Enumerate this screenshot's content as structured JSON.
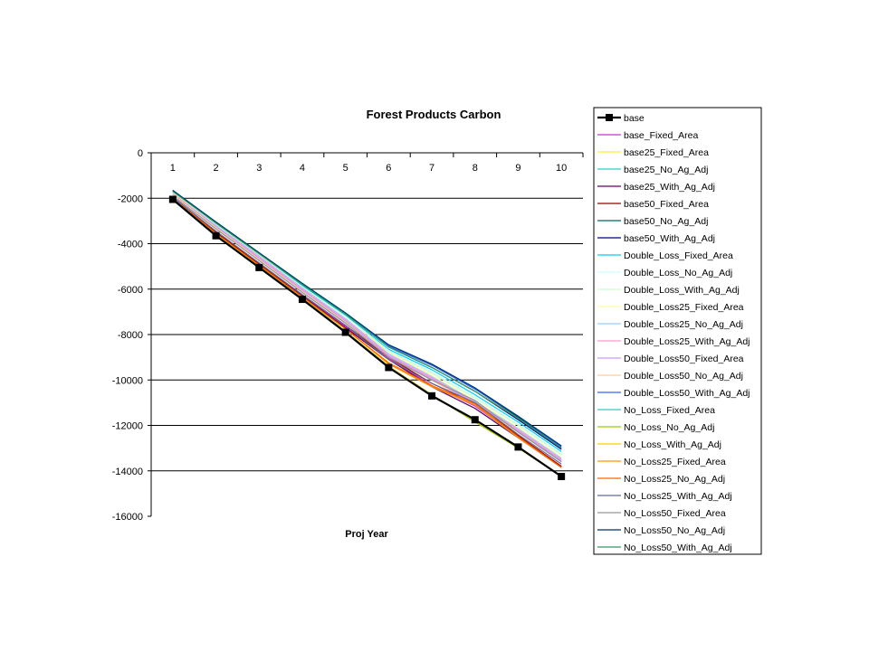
{
  "chart_data": {
    "type": "line",
    "title": "Forest Products Carbon",
    "xlabel": "Proj Year",
    "ylabel": "",
    "categories": [
      "1",
      "2",
      "3",
      "4",
      "5",
      "6",
      "7",
      "8",
      "9",
      "10"
    ],
    "ylim": [
      -16000,
      0
    ],
    "yticks": [
      0,
      -2000,
      -4000,
      -6000,
      -8000,
      -10000,
      -12000,
      -14000,
      -16000
    ],
    "grid": "horizontal",
    "legend_position": "right",
    "series": [
      {
        "name": "base",
        "color": "#000000",
        "marker": "square",
        "values": [
          -2050,
          -3650,
          -5050,
          -6450,
          -7900,
          -9450,
          -10700,
          -11750,
          -12950,
          -14250
        ]
      },
      {
        "name": "base_Fixed_Area",
        "color": "#cc33cc",
        "values": [
          -2000,
          -3550,
          -4900,
          -6250,
          -7650,
          -9050,
          -10250,
          -11150,
          -12500,
          -13800
        ]
      },
      {
        "name": "base25_Fixed_Area",
        "color": "#ffee33",
        "values": [
          -2050,
          -3600,
          -5000,
          -6400,
          -7850,
          -9400,
          -10650,
          -11800,
          -12950,
          -14250
        ]
      },
      {
        "name": "base25_No_Ag_Adj",
        "color": "#33cccc",
        "values": [
          -2050,
          -3600,
          -5000,
          -6400,
          -7850,
          -9400,
          -10650,
          -11850,
          -12950,
          -14250
        ]
      },
      {
        "name": "base25_With_Ag_Adj",
        "color": "#660066",
        "values": [
          -2000,
          -3550,
          -4950,
          -6300,
          -7700,
          -9100,
          -10300,
          -11250,
          -12550,
          -13850
        ]
      },
      {
        "name": "base50_Fixed_Area",
        "color": "#990000",
        "values": [
          -2000,
          -3500,
          -4900,
          -6250,
          -7600,
          -9000,
          -10150,
          -11050,
          -12450,
          -13800
        ]
      },
      {
        "name": "base50_No_Ag_Adj",
        "color": "#006666",
        "values": [
          -1650,
          -3050,
          -4400,
          -5750,
          -7050,
          -8500,
          -9350,
          -10400,
          -11650,
          -12950
        ]
      },
      {
        "name": "base50_With_Ag_Adj",
        "color": "#000080",
        "values": [
          -1700,
          -3100,
          -4450,
          -5800,
          -7100,
          -8550,
          -9450,
          -10500,
          -11750,
          -13050
        ]
      },
      {
        "name": "Double_Loss_Fixed_Area",
        "color": "#00ccff",
        "values": [
          -1700,
          -3100,
          -4450,
          -5850,
          -7150,
          -8650,
          -9550,
          -10650,
          -11850,
          -13150
        ]
      },
      {
        "name": "Double_Loss_No_Ag_Adj",
        "color": "#ccffff",
        "values": [
          -1750,
          -3150,
          -4500,
          -5900,
          -7200,
          -8700,
          -9650,
          -10750,
          -11950,
          -13250
        ]
      },
      {
        "name": "Double_Loss_With_Ag_Adj",
        "color": "#ccffcc",
        "values": [
          -1750,
          -3150,
          -4500,
          -5900,
          -7200,
          -8750,
          -9700,
          -10800,
          -12000,
          -13300
        ]
      },
      {
        "name": "Double_Loss25_Fixed_Area",
        "color": "#ffff99",
        "values": [
          -1800,
          -3200,
          -4550,
          -5950,
          -7300,
          -8800,
          -9800,
          -10900,
          -12100,
          -13400
        ]
      },
      {
        "name": "Double_Loss25_No_Ag_Adj",
        "color": "#99ccff",
        "values": [
          -1800,
          -3200,
          -4550,
          -5950,
          -7300,
          -8850,
          -9850,
          -10950,
          -12150,
          -13450
        ]
      },
      {
        "name": "Double_Loss25_With_Ag_Adj",
        "color": "#ff99cc",
        "values": [
          -1800,
          -3250,
          -4600,
          -6000,
          -7350,
          -8900,
          -9900,
          -11000,
          -12200,
          -13500
        ]
      },
      {
        "name": "Double_Loss50_Fixed_Area",
        "color": "#cc99ff",
        "values": [
          -1850,
          -3250,
          -4650,
          -6050,
          -7400,
          -8950,
          -9950,
          -11050,
          -12250,
          -13550
        ]
      },
      {
        "name": "Double_Loss50_No_Ag_Adj",
        "color": "#ffcc99",
        "values": [
          -1850,
          -3300,
          -4700,
          -6100,
          -7450,
          -9000,
          -10000,
          -11100,
          -12300,
          -13600
        ]
      },
      {
        "name": "Double_Loss50_With_Ag_Adj",
        "color": "#3366ff",
        "values": [
          -1650,
          -3050,
          -4400,
          -5750,
          -7050,
          -8500,
          -9350,
          -10400,
          -11600,
          -12950
        ]
      },
      {
        "name": "No_Loss_Fixed_Area",
        "color": "#33cccc",
        "values": [
          -2050,
          -3600,
          -5000,
          -6400,
          -7850,
          -9400,
          -10650,
          -11800,
          -12950,
          -14250
        ]
      },
      {
        "name": "No_Loss_No_Ag_Adj",
        "color": "#99cc00",
        "values": [
          -2050,
          -3600,
          -5000,
          -6400,
          -7850,
          -9400,
          -10650,
          -11850,
          -13000,
          -14250
        ]
      },
      {
        "name": "No_Loss_With_Ag_Adj",
        "color": "#ffcc00",
        "values": [
          -2050,
          -3600,
          -5000,
          -6400,
          -7850,
          -9400,
          -10650,
          -11800,
          -12950,
          -14250
        ]
      },
      {
        "name": "No_Loss25_Fixed_Area",
        "color": "#ff9900",
        "values": [
          -2000,
          -3550,
          -4950,
          -6350,
          -7750,
          -9300,
          -10300,
          -11100,
          -12550,
          -13850
        ]
      },
      {
        "name": "No_Loss25_No_Ag_Adj",
        "color": "#ff6600",
        "values": [
          -2000,
          -3550,
          -4950,
          -6350,
          -7750,
          -9250,
          -10250,
          -11050,
          -12500,
          -13850
        ]
      },
      {
        "name": "No_Loss25_With_Ag_Adj",
        "color": "#666699",
        "values": [
          -1950,
          -3450,
          -4850,
          -6250,
          -7600,
          -9100,
          -10150,
          -11000,
          -12400,
          -13700
        ]
      },
      {
        "name": "No_Loss50_Fixed_Area",
        "color": "#969696",
        "values": [
          -1900,
          -3350,
          -4750,
          -6150,
          -7500,
          -9000,
          -10000,
          -10900,
          -12300,
          -13600
        ]
      },
      {
        "name": "No_Loss50_No_Ag_Adj",
        "color": "#003366",
        "values": [
          -1650,
          -3050,
          -4400,
          -5750,
          -7050,
          -8450,
          -9300,
          -10350,
          -11600,
          -12900
        ]
      },
      {
        "name": "No_Loss50_With_Ag_Adj",
        "color": "#339966",
        "values": [
          -1700,
          -3100,
          -4450,
          -5800,
          -7100,
          -8550,
          -9450,
          -10500,
          -11700,
          -13000
        ]
      }
    ]
  }
}
